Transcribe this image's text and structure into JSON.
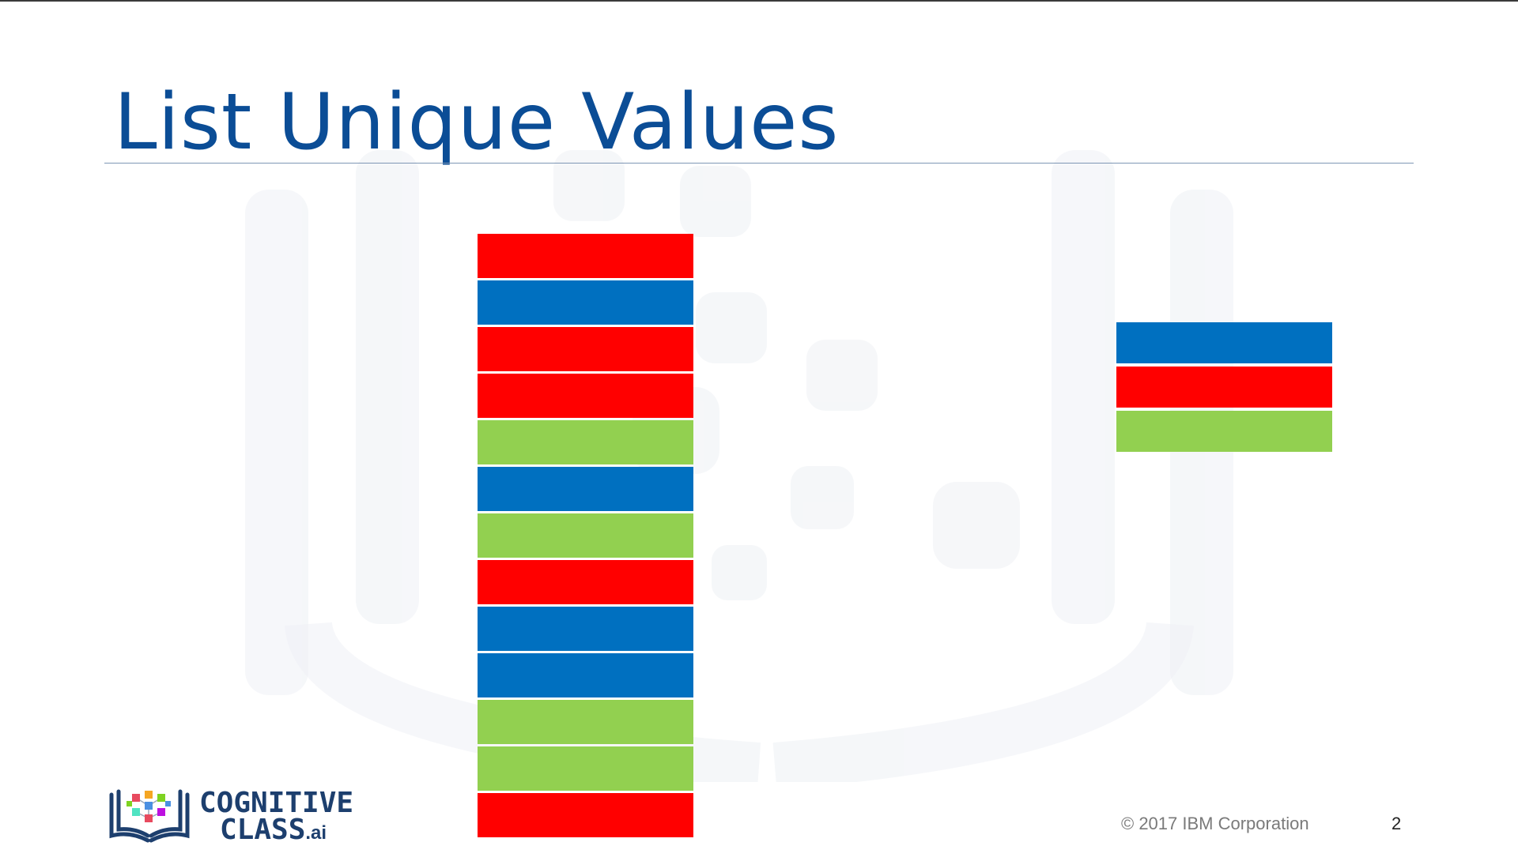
{
  "slide": {
    "title": "List Unique Values",
    "footer": {
      "copyright": "© 2017 IBM Corporation",
      "page_number": "2"
    },
    "logo": {
      "line1": "COGNITIVE",
      "line2": "CLASS",
      "suffix": ".ai"
    }
  },
  "colors": {
    "red": "#ff0000",
    "blue": "#0070c0",
    "green": "#92d050",
    "title": "#0b4d96"
  },
  "column_values": [
    "red",
    "blue",
    "red",
    "red",
    "green",
    "blue",
    "green",
    "red",
    "blue",
    "blue",
    "green",
    "green",
    "red"
  ],
  "unique_values": [
    "blue",
    "red",
    "green"
  ]
}
